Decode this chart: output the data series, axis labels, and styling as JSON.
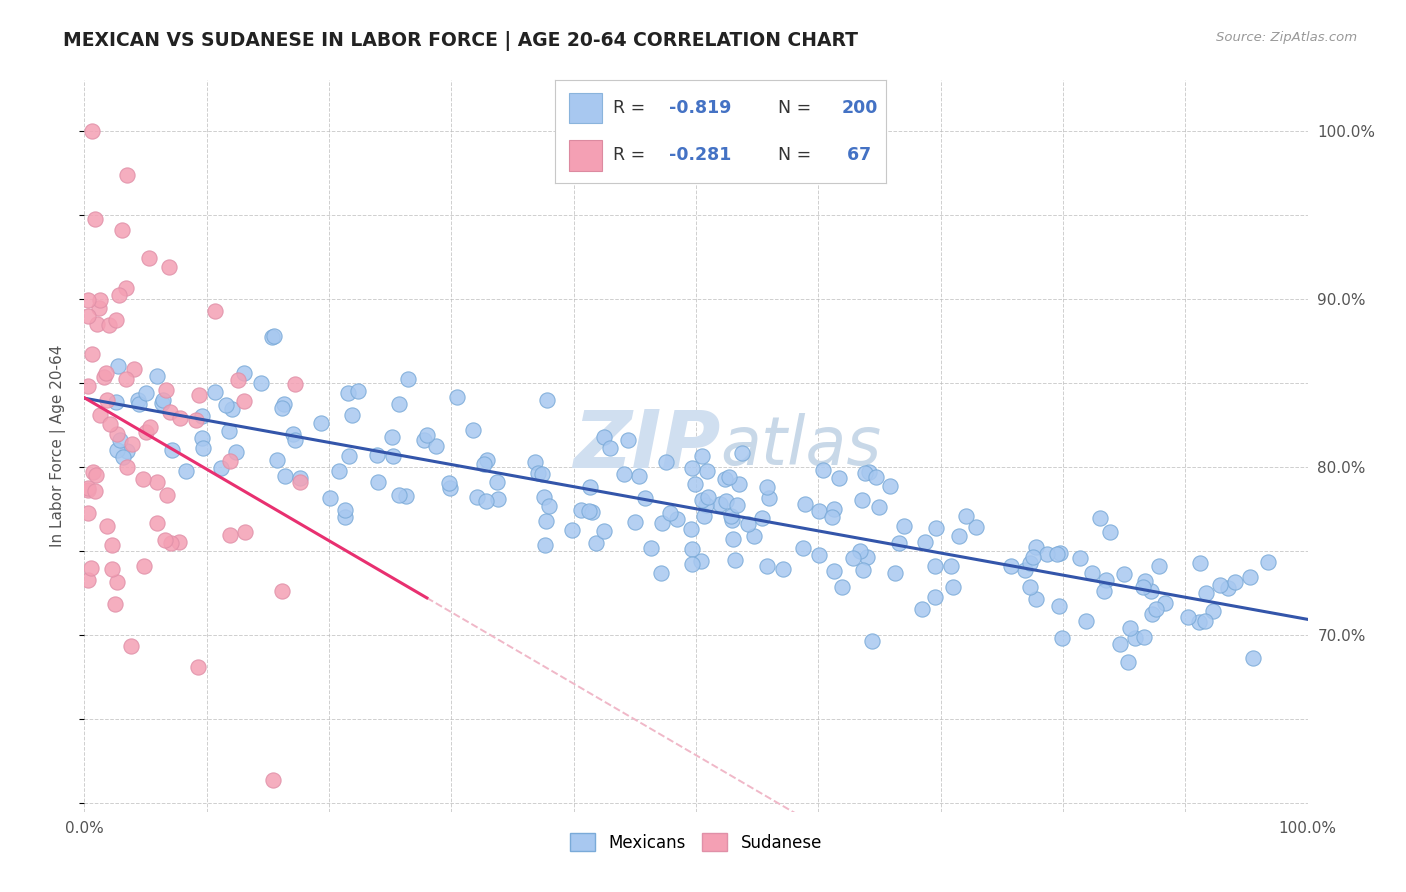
{
  "title": "MEXICAN VS SUDANESE IN LABOR FORCE | AGE 20-64 CORRELATION CHART",
  "source_text": "Source: ZipAtlas.com",
  "ylabel": "In Labor Force | Age 20-64",
  "xlim": [
    0.0,
    1.0
  ],
  "ylim": [
    0.595,
    1.03
  ],
  "x_tick_positions": [
    0.0,
    0.1,
    0.2,
    0.3,
    0.4,
    0.5,
    0.6,
    0.7,
    0.8,
    0.9,
    1.0
  ],
  "x_tick_labels": [
    "0.0%",
    "",
    "",
    "",
    "",
    "",
    "",
    "",
    "",
    "",
    "100.0%"
  ],
  "y_ticks_right": [
    0.7,
    0.8,
    0.9,
    1.0
  ],
  "y_tick_labels_right": [
    "70.0%",
    "80.0%",
    "90.0%",
    "100.0%"
  ],
  "legend_label1": "Mexicans",
  "legend_label2": "Sudanese",
  "blue_scatter_color": "#a8c8f0",
  "pink_scatter_color": "#f4a0b4",
  "blue_line_color": "#3355aa",
  "pink_line_color": "#e83070",
  "pink_line_ext_color": "#f0b8c8",
  "title_color": "#222222",
  "legend_value_color": "#4472c4",
  "legend_label_color": "#333333",
  "background_color": "#ffffff",
  "grid_color": "#bbbbbb",
  "watermark_color": "#d0dff0",
  "seed": 12345
}
